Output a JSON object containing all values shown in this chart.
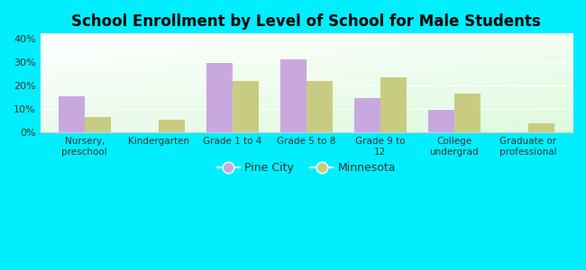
{
  "title": "School Enrollment by Level of School for Male Students",
  "categories": [
    "Nursery,\npreschool",
    "Kindergarten",
    "Grade 1 to 4",
    "Grade 5 to 8",
    "Grade 9 to\n12",
    "College\nundergrad",
    "Graduate or\nprofessional"
  ],
  "pine_city": [
    15.5,
    0,
    29.5,
    31.0,
    14.5,
    9.5,
    0
  ],
  "minnesota": [
    6.5,
    5.5,
    22.0,
    22.0,
    23.5,
    16.5,
    4.0
  ],
  "pine_city_color": "#c9a8e0",
  "minnesota_color": "#c8cc82",
  "ylim": [
    0,
    42
  ],
  "yticks": [
    0,
    10,
    20,
    30,
    40
  ],
  "ytick_labels": [
    "0%",
    "10%",
    "20%",
    "30%",
    "40%"
  ],
  "background_color": "#00eeff",
  "title_fontsize": 12,
  "legend_labels": [
    "Pine City",
    "Minnesota"
  ],
  "bar_width": 0.35
}
